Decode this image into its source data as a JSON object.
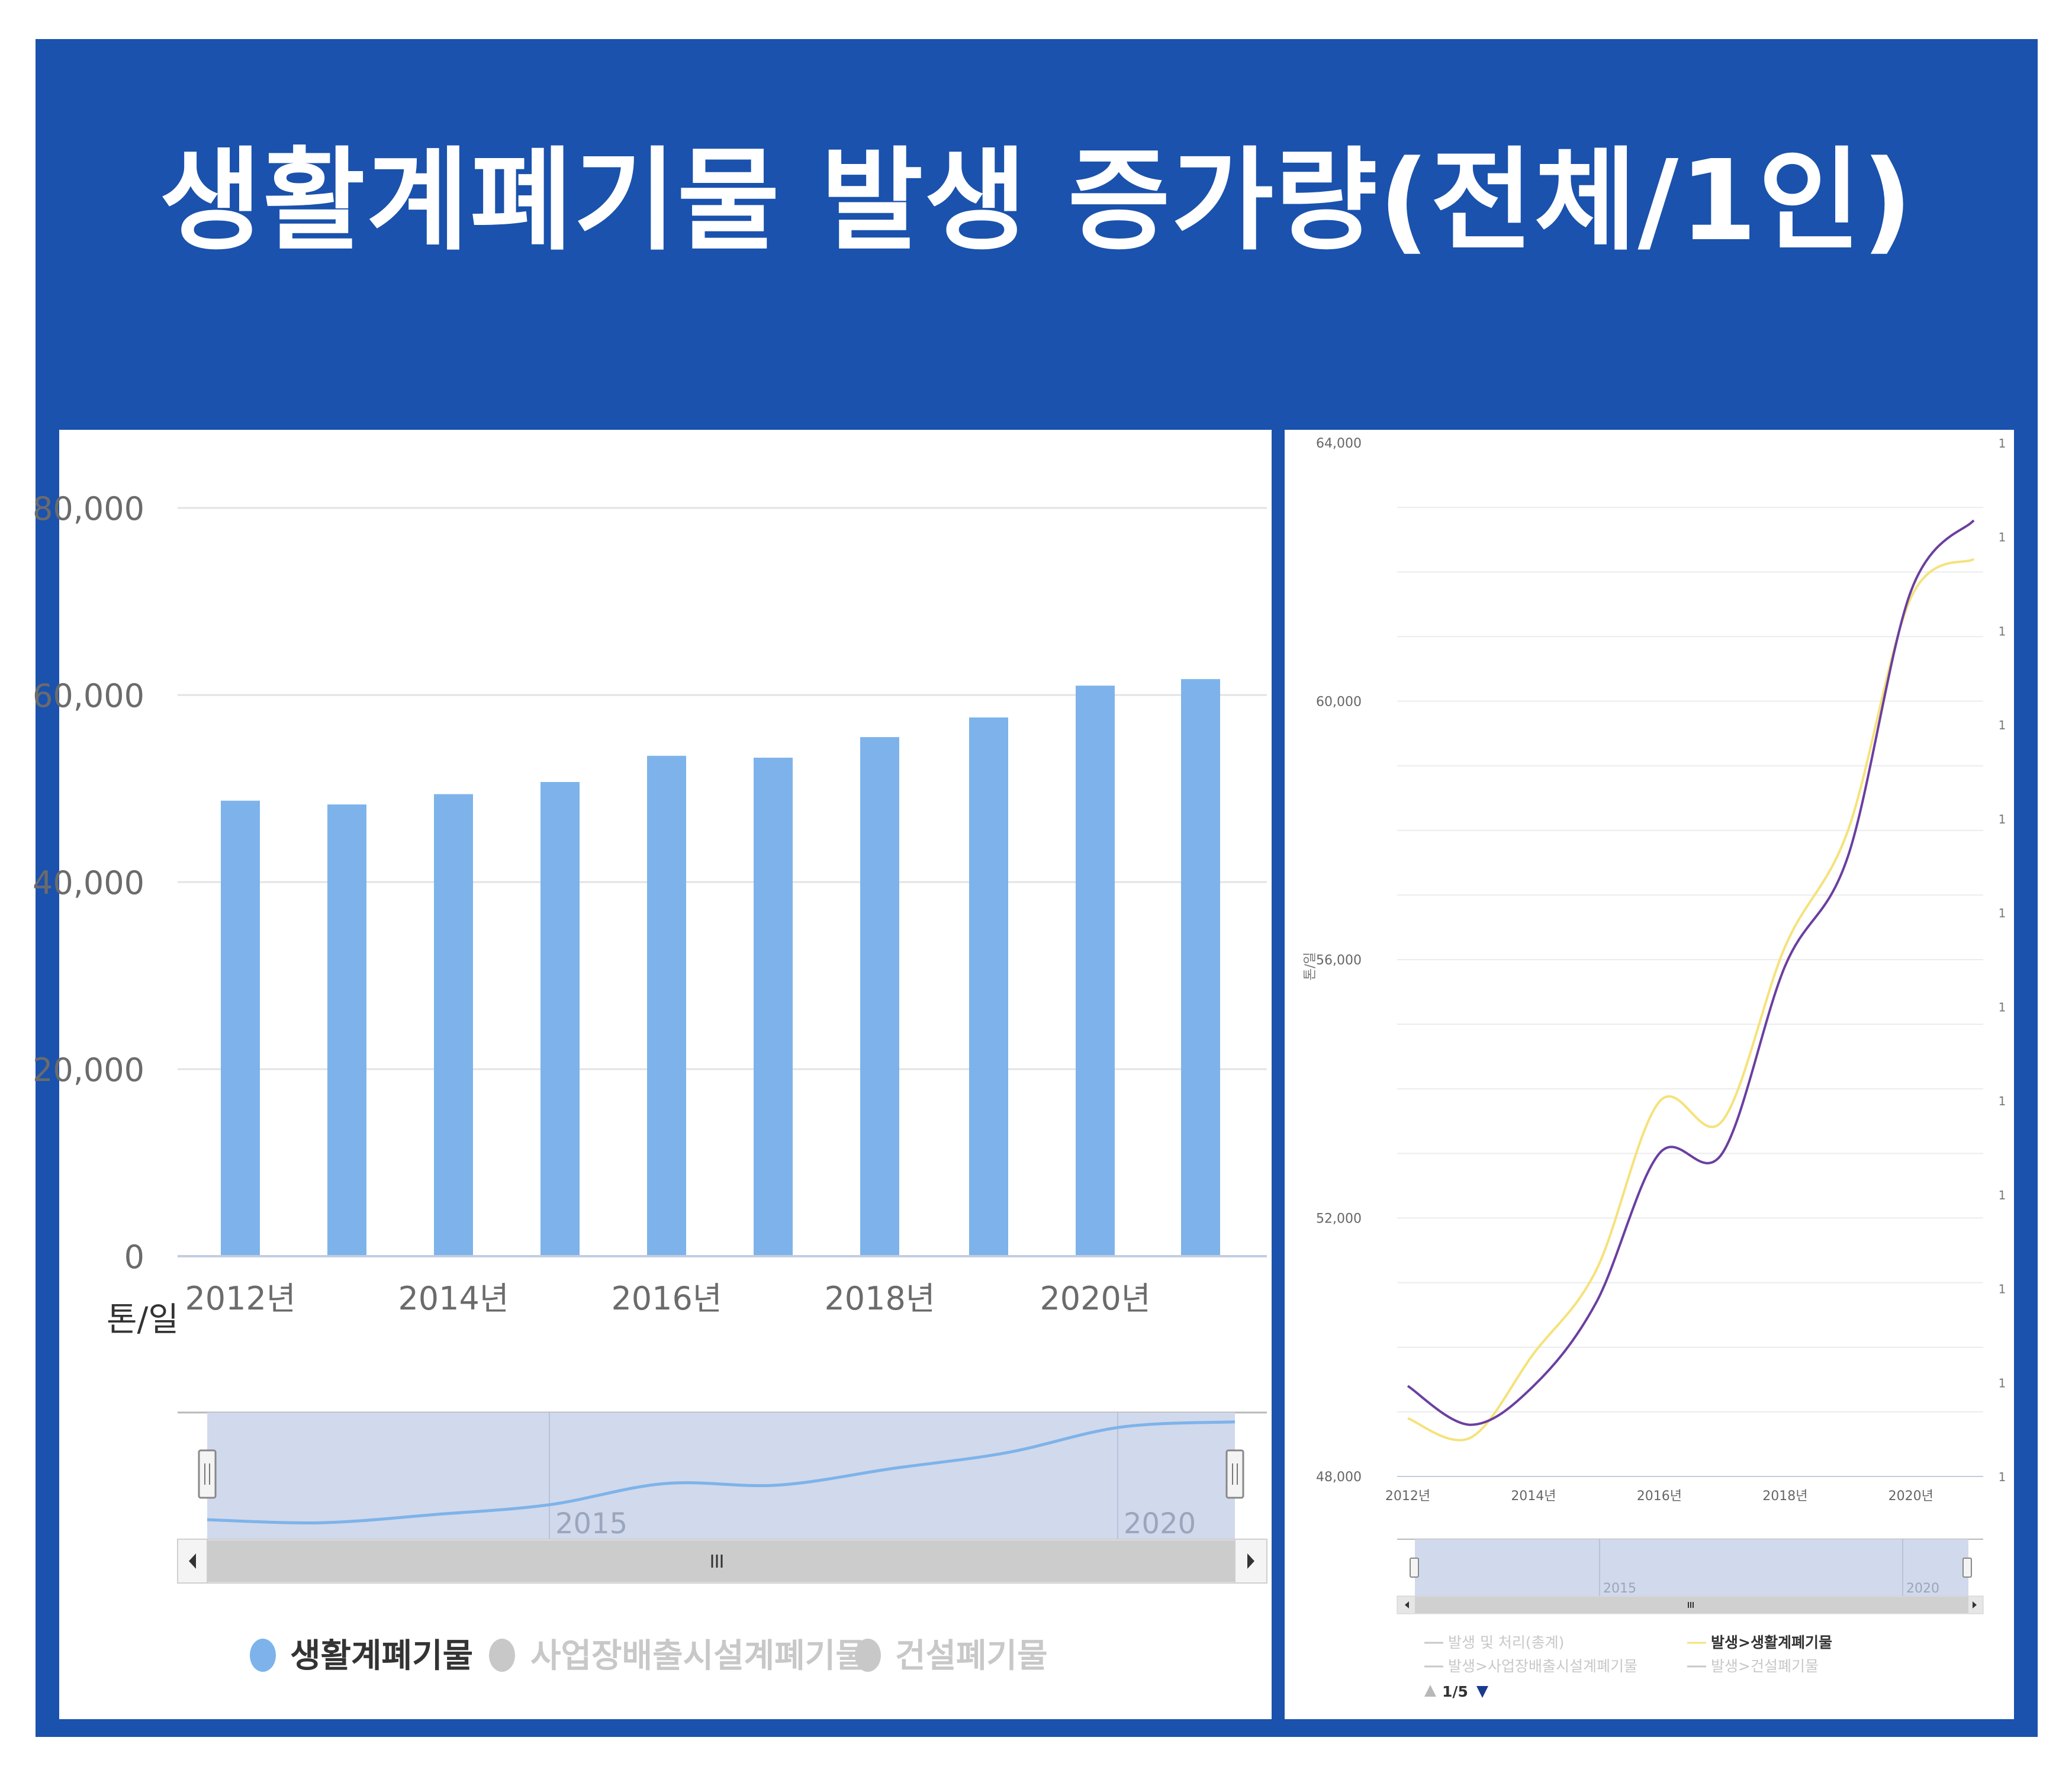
{
  "page": {
    "title": "생활계폐기물 발생 증가량(전체/1인)"
  },
  "colors": {
    "frame": "#1a52ad",
    "bar": "#7db3ea",
    "navigator_fill": "#d1d9ec",
    "line_purple": "#6a3fa0",
    "line_yellow": "#f5e27a",
    "legend_active": "#7db3ea",
    "legend_inactive": "#c8c8c8"
  },
  "left_chart": {
    "y_ticks": [
      "80,000",
      "60,000",
      "40,000",
      "20,000",
      "0"
    ],
    "x_ticks": [
      "2012년",
      "2014년",
      "2016년",
      "2018년",
      "2020년"
    ],
    "unit": "톤/일",
    "navigator_labels": [
      "2015",
      "2020"
    ],
    "legend": [
      {
        "label": "생활계폐기물",
        "active": true
      },
      {
        "label": "사업장배출시설계폐기물",
        "active": false
      },
      {
        "label": "건설폐기물",
        "active": false
      }
    ]
  },
  "right_chart": {
    "y_ticks": [
      "64,000",
      "60,000",
      "56,000",
      "52,000",
      "48,000"
    ],
    "y_label": "톤/일",
    "x_ticks": [
      "2012년",
      "2014년",
      "2016년",
      "2018년",
      "2020년"
    ],
    "right_ticks": [
      "1",
      "1",
      "1",
      "1",
      "1",
      "1",
      "1",
      "1",
      "1",
      "1",
      "1",
      "1"
    ],
    "navigator_labels": [
      "2015",
      "2020"
    ],
    "legend": [
      {
        "label": "발생 및 처리(총계)",
        "active": false
      },
      {
        "label": "발생>생활계폐기물",
        "active": true
      },
      {
        "label": "발생>사업장배출시설계폐기물",
        "active": false
      },
      {
        "label": "발생>건설폐기물",
        "active": false
      }
    ],
    "pager": "1/5"
  },
  "chart_data": [
    {
      "type": "bar",
      "categories": [
        "2012년",
        "2013년",
        "2014년",
        "2015년",
        "2016년",
        "2017년",
        "2018년",
        "2019년",
        "2020년",
        "2021년"
      ],
      "values": [
        48700,
        48300,
        49400,
        50700,
        53500,
        53300,
        55500,
        57600,
        61000,
        61700
      ],
      "ylabel": "톤/일",
      "ylim": [
        0,
        80000
      ],
      "grid": true,
      "legend": "bottom"
    },
    {
      "type": "line",
      "x": [
        "2012년",
        "2013년",
        "2014년",
        "2015년",
        "2016년",
        "2017년",
        "2018년",
        "2019년",
        "2020년",
        "2021년"
      ],
      "series": [
        {
          "name": "발생>생활계폐기물",
          "values": [
            48900,
            48600,
            49900,
            51200,
            53800,
            53500,
            56200,
            58000,
            61600,
            62200
          ]
        },
        {
          "name": "",
          "values": [
            49400,
            48800,
            49400,
            50700,
            53000,
            53000,
            55900,
            57600,
            61700,
            62800
          ]
        }
      ],
      "ylabel": "톤/일",
      "ylim": [
        48000,
        64000
      ],
      "grid": true,
      "legend": "bottom"
    }
  ]
}
